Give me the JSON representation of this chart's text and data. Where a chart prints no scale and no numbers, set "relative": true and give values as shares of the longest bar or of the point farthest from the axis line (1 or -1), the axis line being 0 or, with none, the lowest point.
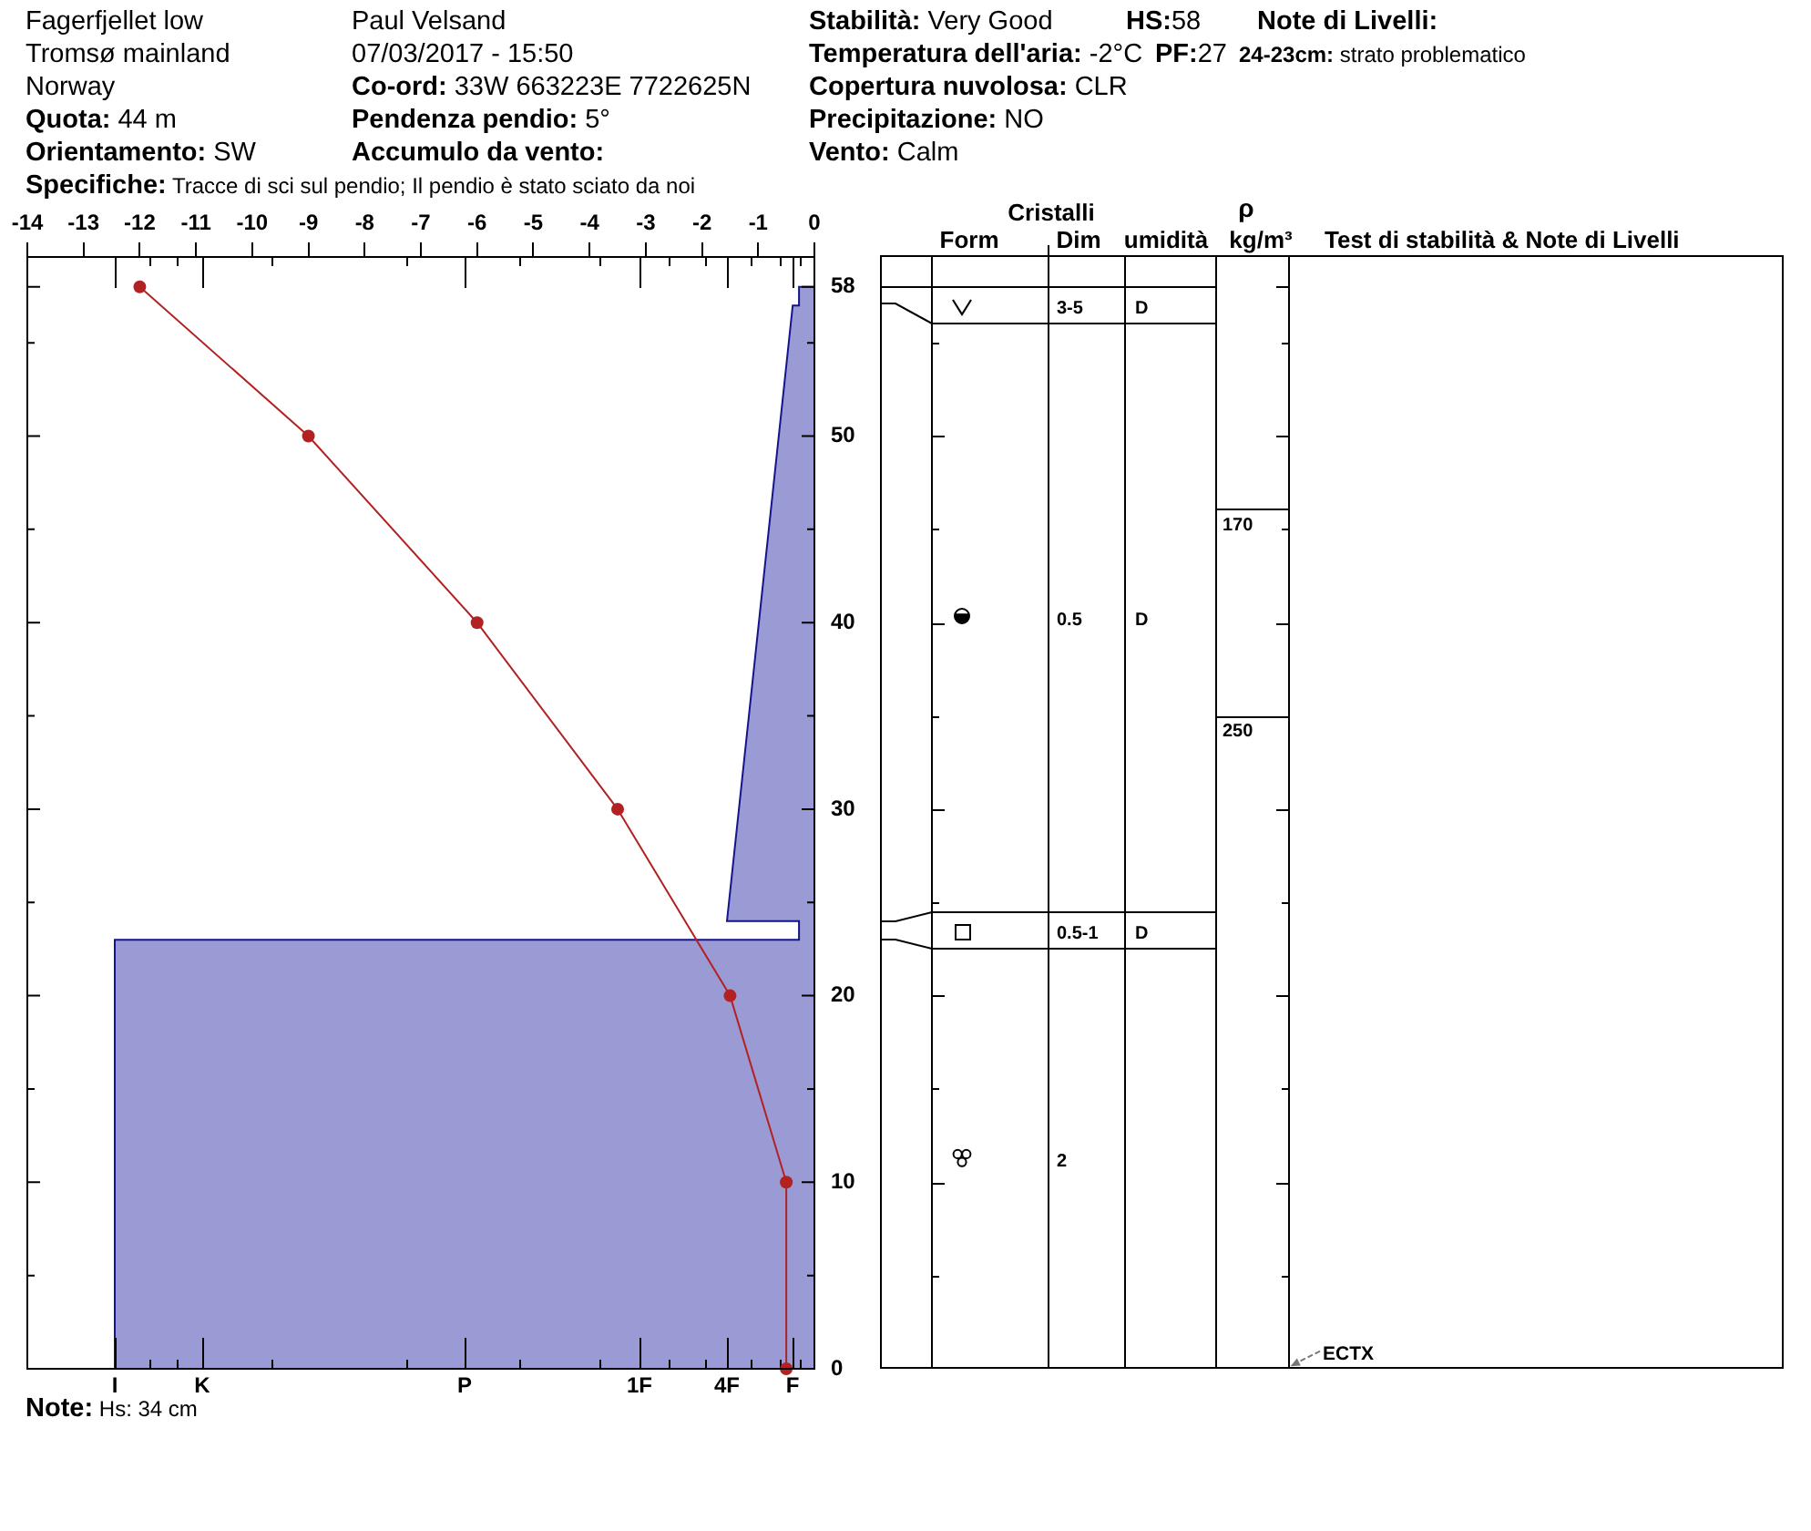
{
  "chart_data": [
    {
      "type": "other",
      "annotations": [
        "Fagerfjellet low",
        "Tromsø mainland",
        "Norway",
        "Quota: 44 m",
        "Orientamento: SW",
        "Paul Velsand",
        "07/03/2017 - 15:50",
        "Co-ord: 33W 663223E 7722625N",
        "Pendenza pendio: 5°",
        "Accumulo da vento:",
        "Stabilità: Very Good",
        "Temperatura dell'aria: -2°C",
        "Copertura nuvolosa: CLR",
        "Precipitazione: NO",
        "Vento: Calm",
        "HS:58",
        "PF:27",
        "Note di Livelli:",
        "24-23cm: strato problematico",
        "Specifiche: Tracce di sci sul pendio; Il pendio è stato sciato da noi"
      ]
    },
    {
      "type": "area",
      "orientation": "horizontal",
      "relative": true,
      "color": "#9a9ad4",
      "x": [
        0,
        23,
        23,
        24,
        24,
        57,
        57,
        58
      ],
      "values": [
        -1,
        -1,
        -0.022,
        -0.022,
        -0.125,
        -0.031,
        -0.022,
        -0.022
      ],
      "ylim": [
        0,
        59.6
      ],
      "yticks": [
        0,
        {
          "value": 5,
          "label": null
        },
        10,
        {
          "value": 15,
          "label": null
        },
        20,
        {
          "value": 25,
          "label": null
        },
        30,
        {
          "value": 35,
          "label": null
        },
        40,
        {
          "value": 45,
          "label": null
        },
        50,
        {
          "value": 55,
          "label": null
        },
        58
      ],
      "annotations": [
        "I",
        "K",
        "P",
        "1F",
        "4F",
        "F"
      ]
    },
    {
      "type": "line",
      "color": "#b22222",
      "marker": "circle",
      "x": [
        -12,
        -9,
        -6,
        -3.5,
        -1.5,
        -0.5,
        -0.5
      ],
      "values": [
        58,
        50,
        40,
        30,
        20,
        10,
        0
      ],
      "xlim": [
        -14,
        0
      ],
      "xticks": [
        -14,
        -13,
        -12,
        -11,
        -10,
        -9,
        -8,
        -7,
        -6,
        -5,
        -4,
        -3,
        -2,
        -1,
        0
      ],
      "ylim": [
        0,
        59.6
      ],
      "tick_labels": "x",
      "annotations": [
        "Note: Hs: 34 cm"
      ]
    },
    {
      "type": "other",
      "annotations": [
        "Cristalli",
        "Form",
        "Dim",
        "umidità",
        "ρ",
        "kg/m³",
        "Test di stabilità & Note di Livelli",
        "3-5",
        "D",
        "0.5",
        "D",
        "0.5-1",
        "D",
        "2",
        "170",
        "250",
        "ECTX"
      ]
    }
  ]
}
